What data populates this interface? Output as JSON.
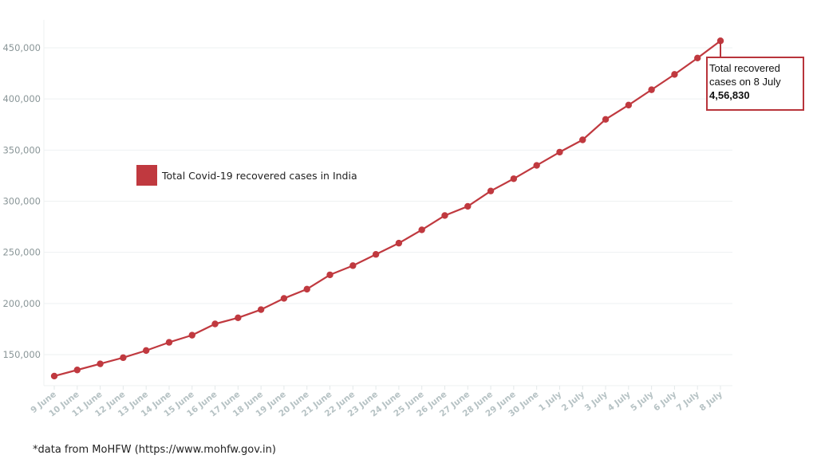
{
  "chart_data": {
    "type": "line",
    "title": "",
    "xlabel": "",
    "ylabel": "",
    "ylim": [
      120000,
      460000
    ],
    "yticks": [
      150000,
      200000,
      250000,
      300000,
      350000,
      400000,
      450000
    ],
    "ytick_labels": [
      "150,000",
      "200,000",
      "250,000",
      "300,000",
      "350,000",
      "400,000",
      "450,000"
    ],
    "grid": true,
    "legend_position": "upper-left (inside plot)",
    "categories": [
      "9 June",
      "10 June",
      "11 June",
      "12 June",
      "13 June",
      "14 June",
      "15 June",
      "16 June",
      "17 June",
      "18 June",
      "19 June",
      "20 June",
      "21 June",
      "22 June",
      "23 June",
      "24 June",
      "25 June",
      "26 June",
      "27 June",
      "28 June",
      "29 June",
      "30 June",
      "1 July",
      "2 July",
      "3 July",
      "4 July",
      "5 July",
      "6 July",
      "7 July",
      "8 July"
    ],
    "series": [
      {
        "name": "Total Covid-19 recovered cases in India",
        "color": "#c0393f",
        "values": [
          129000,
          135000,
          141000,
          147000,
          154000,
          162000,
          169000,
          180000,
          186000,
          194000,
          205000,
          214000,
          228000,
          237000,
          248000,
          259000,
          272000,
          286000,
          295000,
          310000,
          322000,
          335000,
          348000,
          360000,
          380000,
          394000,
          409000,
          424000,
          440000,
          456830
        ]
      }
    ],
    "annotations": [
      {
        "target": "8 July",
        "text": "Total recovered cases on 8 July 4,56,830"
      }
    ]
  },
  "legend": {
    "label": "Total Covid-19 recovered cases in India",
    "color": "#c0393f"
  },
  "annotation": {
    "line1": "Total recovered",
    "line2": "cases on 8 July",
    "value": "4,56,830",
    "border_color": "#b8343b"
  },
  "footnote": "*data from MoHFW (https://www.mohfw.gov.in)"
}
